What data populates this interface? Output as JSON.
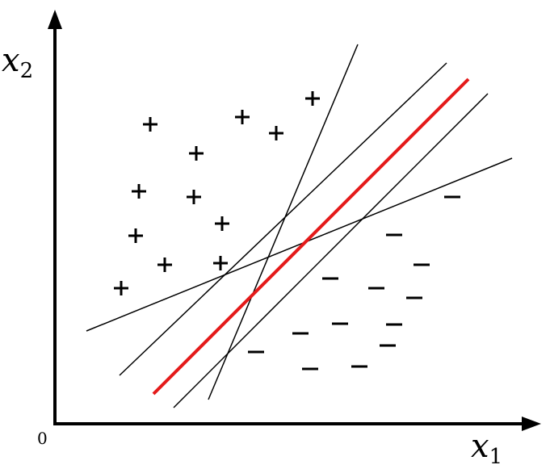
{
  "axes": {
    "origin": "0",
    "x_label": {
      "base": "x",
      "sub": "1"
    },
    "y_label": {
      "base": "x",
      "sub": "2"
    }
  }
}
